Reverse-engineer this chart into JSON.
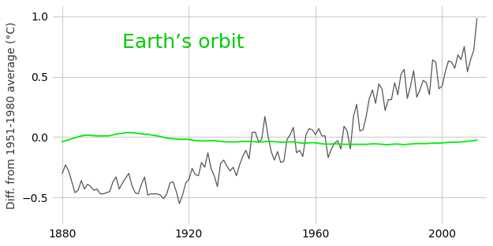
{
  "title": "Earth’s orbit",
  "ylabel": "Diff. from 1951-1980 average (°C)",
  "ylim": [
    -0.72,
    1.08
  ],
  "yticks": [
    -0.5,
    0.0,
    0.5,
    1.0
  ],
  "xlim": [
    1877,
    2014
  ],
  "xticks": [
    1880,
    1920,
    1960,
    2000
  ],
  "bg_color": "#ffffff",
  "grid_color": "#cccccc",
  "observed_color": "#555555",
  "orbital_color": "#00ee00",
  "title_color": "#00cc00",
  "title_fontsize": 18,
  "ylabel_fontsize": 10,
  "observed_linewidth": 0.9,
  "orbital_linewidth": 1.3,
  "observed_years": [
    1880,
    1881,
    1882,
    1883,
    1884,
    1885,
    1886,
    1887,
    1888,
    1889,
    1890,
    1891,
    1892,
    1893,
    1894,
    1895,
    1896,
    1897,
    1898,
    1899,
    1900,
    1901,
    1902,
    1903,
    1904,
    1905,
    1906,
    1907,
    1908,
    1909,
    1910,
    1911,
    1912,
    1913,
    1914,
    1915,
    1916,
    1917,
    1918,
    1919,
    1920,
    1921,
    1922,
    1923,
    1924,
    1925,
    1926,
    1927,
    1928,
    1929,
    1930,
    1931,
    1932,
    1933,
    1934,
    1935,
    1936,
    1937,
    1938,
    1939,
    1940,
    1941,
    1942,
    1943,
    1944,
    1945,
    1946,
    1947,
    1948,
    1949,
    1950,
    1951,
    1952,
    1953,
    1954,
    1955,
    1956,
    1957,
    1958,
    1959,
    1960,
    1961,
    1962,
    1963,
    1964,
    1965,
    1966,
    1967,
    1968,
    1969,
    1970,
    1971,
    1972,
    1973,
    1974,
    1975,
    1976,
    1977,
    1978,
    1979,
    1980,
    1981,
    1982,
    1983,
    1984,
    1985,
    1986,
    1987,
    1988,
    1989,
    1990,
    1991,
    1992,
    1993,
    1994,
    1995,
    1996,
    1997,
    1998,
    1999,
    2000,
    2001,
    2002,
    2003,
    2004,
    2005,
    2006,
    2007,
    2008,
    2009,
    2010,
    2011
  ],
  "observed_values": [
    -0.3,
    -0.23,
    -0.28,
    -0.37,
    -0.46,
    -0.44,
    -0.36,
    -0.43,
    -0.39,
    -0.41,
    -0.44,
    -0.43,
    -0.47,
    -0.47,
    -0.46,
    -0.45,
    -0.37,
    -0.33,
    -0.43,
    -0.38,
    -0.34,
    -0.3,
    -0.4,
    -0.46,
    -0.47,
    -0.39,
    -0.33,
    -0.48,
    -0.47,
    -0.47,
    -0.47,
    -0.48,
    -0.51,
    -0.47,
    -0.38,
    -0.37,
    -0.45,
    -0.55,
    -0.48,
    -0.38,
    -0.35,
    -0.26,
    -0.31,
    -0.32,
    -0.21,
    -0.25,
    -0.13,
    -0.26,
    -0.32,
    -0.41,
    -0.22,
    -0.19,
    -0.24,
    -0.28,
    -0.25,
    -0.32,
    -0.23,
    -0.16,
    -0.11,
    -0.18,
    0.04,
    0.04,
    -0.04,
    -0.02,
    0.17,
    0.01,
    -0.12,
    -0.19,
    -0.12,
    -0.21,
    -0.2,
    -0.02,
    0.02,
    0.08,
    -0.13,
    -0.11,
    -0.16,
    0.02,
    0.07,
    0.06,
    0.02,
    0.07,
    0.01,
    0.01,
    -0.17,
    -0.1,
    -0.05,
    -0.03,
    -0.1,
    0.09,
    0.05,
    -0.1,
    0.17,
    0.27,
    0.05,
    0.06,
    0.17,
    0.32,
    0.39,
    0.28,
    0.44,
    0.4,
    0.22,
    0.31,
    0.31,
    0.45,
    0.35,
    0.52,
    0.56,
    0.32,
    0.42,
    0.55,
    0.33,
    0.39,
    0.47,
    0.45,
    0.35,
    0.64,
    0.62,
    0.4,
    0.42,
    0.54,
    0.63,
    0.62,
    0.57,
    0.68,
    0.64,
    0.75,
    0.54,
    0.64,
    0.72,
    0.98
  ],
  "orbital_years": [
    1880,
    1881,
    1882,
    1883,
    1884,
    1885,
    1886,
    1887,
    1888,
    1889,
    1890,
    1891,
    1892,
    1893,
    1894,
    1895,
    1896,
    1897,
    1898,
    1899,
    1900,
    1901,
    1902,
    1903,
    1904,
    1905,
    1906,
    1907,
    1908,
    1909,
    1910,
    1911,
    1912,
    1913,
    1914,
    1915,
    1916,
    1917,
    1918,
    1919,
    1920,
    1921,
    1922,
    1923,
    1924,
    1925,
    1926,
    1927,
    1928,
    1929,
    1930,
    1931,
    1932,
    1933,
    1934,
    1935,
    1936,
    1937,
    1938,
    1939,
    1940,
    1941,
    1942,
    1943,
    1944,
    1945,
    1946,
    1947,
    1948,
    1949,
    1950,
    1951,
    1952,
    1953,
    1954,
    1955,
    1956,
    1957,
    1958,
    1959,
    1960,
    1961,
    1962,
    1963,
    1964,
    1965,
    1966,
    1967,
    1968,
    1969,
    1970,
    1971,
    1972,
    1973,
    1974,
    1975,
    1976,
    1977,
    1978,
    1979,
    1980,
    1981,
    1982,
    1983,
    1984,
    1985,
    1986,
    1987,
    1988,
    1989,
    1990,
    1991,
    1992,
    1993,
    1994,
    1995,
    1996,
    1997,
    1998,
    1999,
    2000,
    2001,
    2002,
    2003,
    2004,
    2005,
    2006,
    2007,
    2008,
    2009,
    2010,
    2011
  ],
  "orbital_values": [
    -0.038,
    -0.03,
    -0.022,
    -0.014,
    -0.006,
    0.002,
    0.01,
    0.014,
    0.016,
    0.014,
    0.012,
    0.01,
    0.01,
    0.01,
    0.01,
    0.012,
    0.018,
    0.024,
    0.028,
    0.032,
    0.036,
    0.038,
    0.036,
    0.034,
    0.03,
    0.026,
    0.024,
    0.022,
    0.018,
    0.014,
    0.01,
    0.004,
    -0.002,
    -0.008,
    -0.012,
    -0.014,
    -0.016,
    -0.018,
    -0.018,
    -0.018,
    -0.02,
    -0.024,
    -0.028,
    -0.03,
    -0.032,
    -0.032,
    -0.03,
    -0.03,
    -0.03,
    -0.032,
    -0.036,
    -0.038,
    -0.04,
    -0.04,
    -0.04,
    -0.04,
    -0.038,
    -0.036,
    -0.036,
    -0.036,
    -0.038,
    -0.04,
    -0.042,
    -0.04,
    -0.038,
    -0.036,
    -0.036,
    -0.038,
    -0.04,
    -0.042,
    -0.042,
    -0.04,
    -0.04,
    -0.04,
    -0.044,
    -0.048,
    -0.05,
    -0.05,
    -0.048,
    -0.046,
    -0.048,
    -0.052,
    -0.056,
    -0.058,
    -0.058,
    -0.058,
    -0.056,
    -0.056,
    -0.058,
    -0.06,
    -0.06,
    -0.06,
    -0.06,
    -0.06,
    -0.06,
    -0.06,
    -0.06,
    -0.058,
    -0.056,
    -0.056,
    -0.058,
    -0.06,
    -0.062,
    -0.062,
    -0.06,
    -0.058,
    -0.058,
    -0.06,
    -0.062,
    -0.06,
    -0.058,
    -0.056,
    -0.054,
    -0.054,
    -0.054,
    -0.054,
    -0.052,
    -0.05,
    -0.05,
    -0.05,
    -0.048,
    -0.046,
    -0.044,
    -0.042,
    -0.042,
    -0.042,
    -0.04,
    -0.038,
    -0.034,
    -0.032,
    -0.03,
    -0.024
  ]
}
